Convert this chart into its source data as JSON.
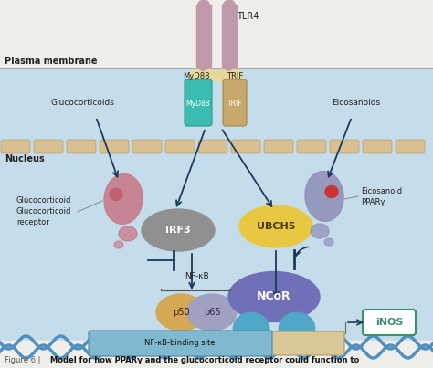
{
  "bg_top": "#f5f5f0",
  "bg_cell": "#c8e0ee",
  "plasma_label": "Plasma membrane",
  "nucleus_label": "Nucleus",
  "tlr4_label": "TLR4",
  "myd88_label": "MyD88",
  "trif_label": "TRIF",
  "irf3_label": "IRF3",
  "ubch5_label": "UBCH5",
  "ncor_label": "NCoR",
  "nfkb_label": "NF-κB",
  "p50_label": "p50",
  "p65_label": "p65",
  "inos_label": "iNOS",
  "nfkb_site_label": "NF-κB-binding site",
  "glucocorticoids_label": "Glucocorticoids",
  "glucocorticoid_label": "Glucocorticoid",
  "glucocorticoid_receptor_label": "Glucocorticoid\nreceptor",
  "eicosanoids_label": "Eicosanoids",
  "eicosanoid_label": "Eicosanoid",
  "pparg_label": "PPARγ",
  "caption_normal": "Figure 6 | ",
  "caption_bold": "Model for how PPARγ and the glucocorticoid receptor could function to",
  "colors": {
    "tlr4": "#c09aaa",
    "myd88": "#3abdb0",
    "trif": "#c8a86a",
    "membrane_pill": "#d8c090",
    "membrane_pill_edge": "#b8a070",
    "irf3": "#909090",
    "ubch5": "#e8c840",
    "ncor": "#7070b8",
    "ncor_balls": "#50a8c8",
    "p50": "#d4a855",
    "p65": "#a0a0c0",
    "inos_box_edge": "#3a9068",
    "inos_text": "#3a9068",
    "nfkb_site_box": "#80b8d0",
    "dna": "#5090c0",
    "gc_receptor": "#c87888",
    "pparg_receptor": "#9090b8",
    "ligand_gc": "#c06070",
    "ligand_eic": "#cc3333",
    "arrows": "#1a3a5c",
    "genome_bar": "#d8c898",
    "bg_top": "#f0eeea",
    "bg_cell": "#c5dcea"
  }
}
